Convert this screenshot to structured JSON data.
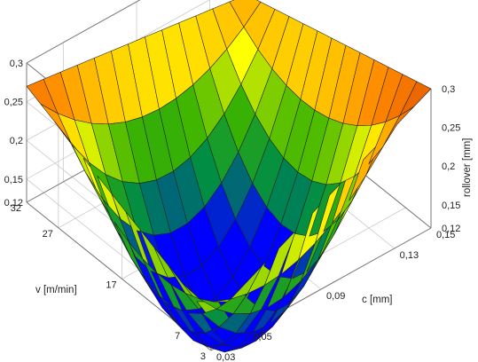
{
  "chart_data": {
    "type": "surface",
    "title": "",
    "x": {
      "label": "c [mm]",
      "ticks": [
        "0,03",
        "0,05",
        "0,09",
        "0,13",
        "0,15"
      ],
      "tick_values": [
        0.03,
        0.05,
        0.09,
        0.13,
        0.15
      ],
      "range": [
        0.03,
        0.15
      ]
    },
    "y": {
      "label": "v [m/min]",
      "ticks": [
        "3",
        "7",
        "17",
        "27",
        "32"
      ],
      "tick_values": [
        3,
        7,
        17,
        27,
        32
      ],
      "range": [
        3,
        32
      ]
    },
    "z": {
      "label": "rollover [mm]",
      "ticks": [
        "0,12",
        "0,15",
        "0,2",
        "0,25",
        "0,3"
      ],
      "tick_values": [
        0.12,
        0.15,
        0.2,
        0.25,
        0.3
      ],
      "range": [
        0.12,
        0.3
      ]
    },
    "corners": [
      {
        "c": 0.03,
        "v": 3,
        "rollover": 0.16
      },
      {
        "c": 0.15,
        "v": 3,
        "rollover": 0.3
      },
      {
        "c": 0.03,
        "v": 32,
        "rollover": 0.27
      },
      {
        "c": 0.15,
        "v": 32,
        "rollover": 0.23
      }
    ],
    "minimum": {
      "c": 0.07,
      "v": 10,
      "rollover": 0.04
    },
    "grid": true,
    "colormap": [
      "#0000ff",
      "#008c46",
      "#3cb400",
      "#ffff00",
      "#ff8c00",
      "#e65a00"
    ]
  }
}
